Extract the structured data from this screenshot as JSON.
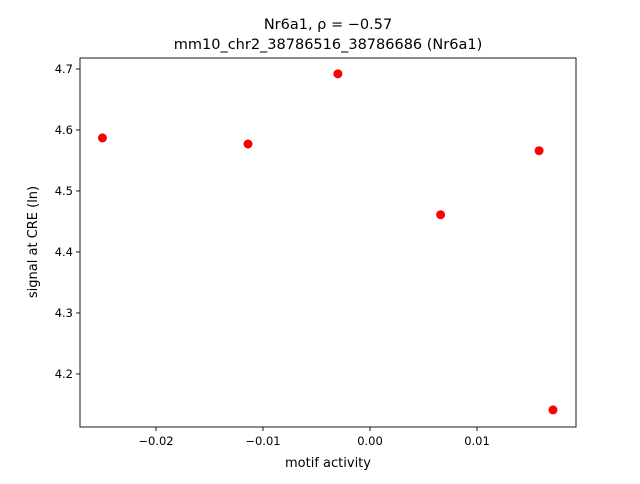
{
  "chart_data": {
    "type": "scatter",
    "title_line1": "Nr6a1, ρ = −0.57",
    "title_line2": "mm10_chr2_38786516_38786686 (Nr6a1)",
    "xlabel": "motif activity",
    "ylabel": "signal at CRE (ln)",
    "xlim": [
      -0.0271,
      0.01925
    ],
    "ylim": [
      4.113,
      4.718
    ],
    "xticks": [
      -0.02,
      -0.01,
      0.0,
      0.01
    ],
    "xtick_labels": [
      "−0.02",
      "−0.01",
      "0.00",
      "0.01"
    ],
    "yticks": [
      4.2,
      4.3,
      4.4,
      4.5,
      4.6,
      4.7
    ],
    "ytick_labels": [
      "4.2",
      "4.3",
      "4.4",
      "4.5",
      "4.6",
      "4.7"
    ],
    "grid": false,
    "marker_color": "#ff0000",
    "points": [
      {
        "x": -0.025,
        "y": 4.587
      },
      {
        "x": -0.0114,
        "y": 4.577
      },
      {
        "x": -0.003,
        "y": 4.692
      },
      {
        "x": 0.0066,
        "y": 4.461
      },
      {
        "x": 0.0158,
        "y": 4.566
      },
      {
        "x": 0.0171,
        "y": 4.141
      }
    ]
  }
}
